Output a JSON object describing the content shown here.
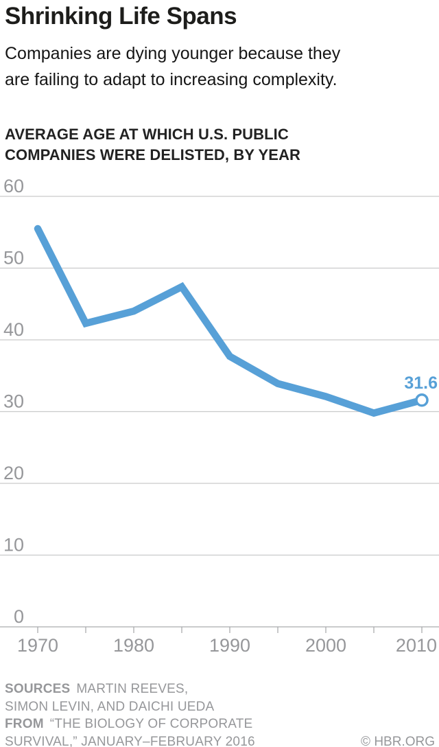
{
  "header": {
    "title": "Shrinking Life Spans",
    "subtitle_line1": "Companies are dying younger because they",
    "subtitle_line2": "are failing to adapt to increasing complexity.",
    "chart_label_line1": "AVERAGE AGE AT WHICH U.S. PUBLIC",
    "chart_label_line2": "COMPANIES WERE DELISTED, BY YEAR"
  },
  "chart_data": {
    "type": "line",
    "title": "AVERAGE AGE AT WHICH U.S. PUBLIC COMPANIES WERE DELISTED, BY YEAR",
    "x": [
      1970,
      1975,
      1980,
      1985,
      1990,
      1995,
      2000,
      2005,
      2010
    ],
    "values": [
      55.5,
      42.3,
      44.0,
      47.4,
      37.7,
      33.9,
      32.1,
      29.8,
      31.6
    ],
    "end_label": "31.6",
    "xlabel": "",
    "ylabel": "",
    "ylim": [
      0,
      60
    ],
    "xlim": [
      1970,
      2010
    ],
    "yticks": [
      60,
      50,
      40,
      30,
      20,
      10,
      0
    ],
    "xtick_labels": [
      "1970",
      "1980",
      "1990",
      "2000",
      "2010"
    ],
    "xticks_minor_step": 5,
    "grid": true,
    "legend": "none",
    "marker": "open-circle-at-last-point"
  },
  "footer": {
    "sources_label": "SOURCES",
    "sources_text_line1": "MARTIN REEVES,",
    "sources_text_line2": "SIMON LEVIN, AND DAICHI UEDA",
    "from_label": "FROM",
    "from_text_line1": "“THE BIOLOGY OF CORPORATE",
    "from_text_line2": "SURVIVAL,” JANUARY–FEBRUARY 2016",
    "copyright": "© HBR.ORG"
  },
  "colors": {
    "accent_blue": "#57a0d7",
    "ink": "#1d1d1b",
    "label_gray": "#96979a",
    "gridline": "#c9cacb",
    "axis": "#aaacae",
    "background": "#ffffff"
  }
}
